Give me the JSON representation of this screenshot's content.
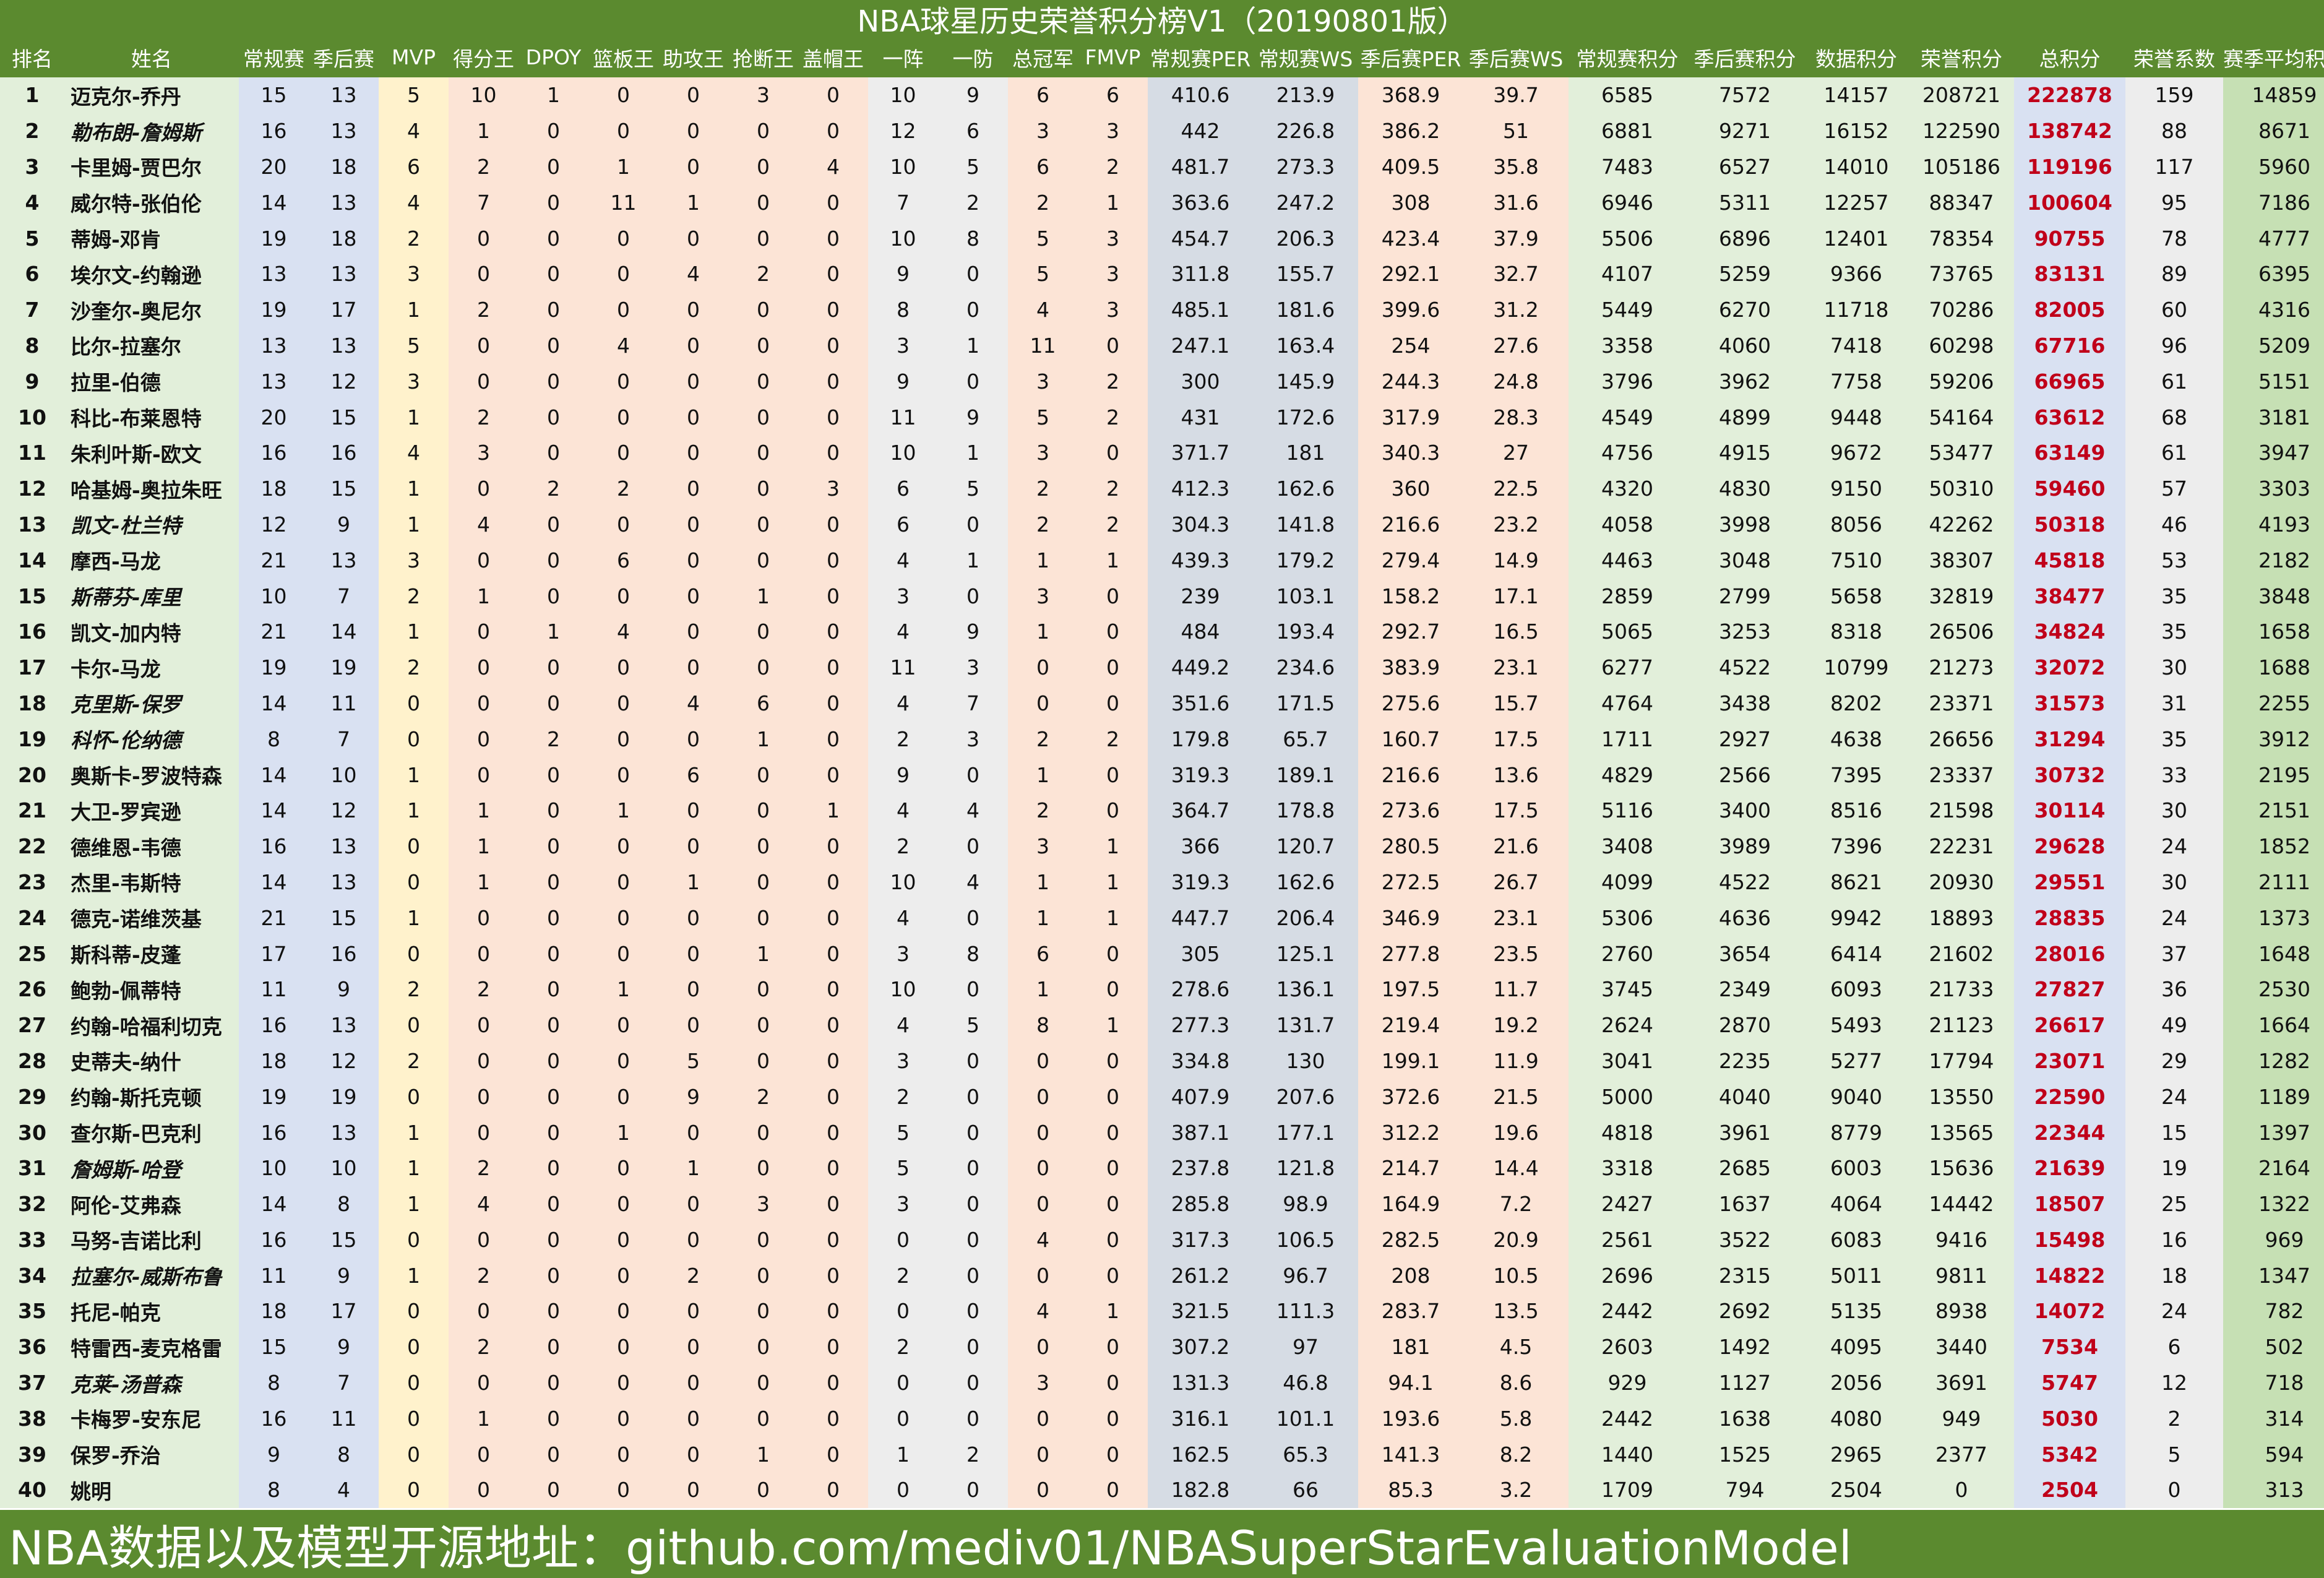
{
  "title": "NBA球星历史荣誉积分榜V1（20190801版）",
  "footer": "NBA数据以及模型开源地址：github.com/mediv01/NBASuperStarEvaluationModel",
  "columns": [
    "排名",
    "姓名",
    "常规赛",
    "季后赛",
    "MVP",
    "得分王",
    "DPOY",
    "篮板王",
    "助攻王",
    "抢断王",
    "盖帽王",
    "一阵",
    "一防",
    "总冠军",
    "FMVP",
    "常规赛PER",
    "常规赛WS",
    "季后赛PER",
    "季后赛WS",
    "常规赛积分",
    "季后赛积分",
    "数据积分",
    "荣誉积分",
    "总积分",
    "荣誉系数",
    "赛季平均积分"
  ],
  "column_colors": [
    "#e2efda",
    "#e2efda",
    "#d9e1f2",
    "#d9e1f2",
    "#fff2cc",
    "#fce4d6",
    "#fce4d6",
    "#fce4d6",
    "#fce4d6",
    "#fce4d6",
    "#fce4d6",
    "#ededed",
    "#ededed",
    "#fce4d6",
    "#fce4d6",
    "#d6dce4",
    "#d6dce4",
    "#fce4d6",
    "#fce4d6",
    "#e2efda",
    "#e2efda",
    "#e2efda",
    "#e2efda",
    "#d9e1f2",
    "#ededed",
    "#c6e0b4"
  ],
  "rows": [
    [
      "1",
      "迈克尔-乔丹",
      "15",
      "13",
      "5",
      "10",
      "1",
      "0",
      "0",
      "3",
      "0",
      "10",
      "9",
      "6",
      "6",
      "410.6",
      "213.9",
      "368.9",
      "39.7",
      "6585",
      "7572",
      "14157",
      "208721",
      "222878",
      "159",
      "14859"
    ],
    [
      "2",
      "勒布朗-詹姆斯",
      "16",
      "13",
      "4",
      "1",
      "0",
      "0",
      "0",
      "0",
      "0",
      "12",
      "6",
      "3",
      "3",
      "442",
      "226.8",
      "386.2",
      "51",
      "6881",
      "9271",
      "16152",
      "122590",
      "138742",
      "88",
      "8671"
    ],
    [
      "3",
      "卡里姆-贾巴尔",
      "20",
      "18",
      "6",
      "2",
      "0",
      "1",
      "0",
      "0",
      "4",
      "10",
      "5",
      "6",
      "2",
      "481.7",
      "273.3",
      "409.5",
      "35.8",
      "7483",
      "6527",
      "14010",
      "105186",
      "119196",
      "117",
      "5960"
    ],
    [
      "4",
      "威尔特-张伯伦",
      "14",
      "13",
      "4",
      "7",
      "0",
      "11",
      "1",
      "0",
      "0",
      "7",
      "2",
      "2",
      "1",
      "363.6",
      "247.2",
      "308",
      "31.6",
      "6946",
      "5311",
      "12257",
      "88347",
      "100604",
      "95",
      "7186"
    ],
    [
      "5",
      "蒂姆-邓肯",
      "19",
      "18",
      "2",
      "0",
      "0",
      "0",
      "0",
      "0",
      "0",
      "10",
      "8",
      "5",
      "3",
      "454.7",
      "206.3",
      "423.4",
      "37.9",
      "5506",
      "6896",
      "12401",
      "78354",
      "90755",
      "78",
      "4777"
    ],
    [
      "6",
      "埃尔文-约翰逊",
      "13",
      "13",
      "3",
      "0",
      "0",
      "0",
      "4",
      "2",
      "0",
      "9",
      "0",
      "5",
      "3",
      "311.8",
      "155.7",
      "292.1",
      "32.7",
      "4107",
      "5259",
      "9366",
      "73765",
      "83131",
      "89",
      "6395"
    ],
    [
      "7",
      "沙奎尔-奥尼尔",
      "19",
      "17",
      "1",
      "2",
      "0",
      "0",
      "0",
      "0",
      "0",
      "8",
      "0",
      "4",
      "3",
      "485.1",
      "181.6",
      "399.6",
      "31.2",
      "5449",
      "6270",
      "11718",
      "70286",
      "82005",
      "60",
      "4316"
    ],
    [
      "8",
      "比尔-拉塞尔",
      "13",
      "13",
      "5",
      "0",
      "0",
      "4",
      "0",
      "0",
      "0",
      "3",
      "1",
      "11",
      "0",
      "247.1",
      "163.4",
      "254",
      "27.6",
      "3358",
      "4060",
      "7418",
      "60298",
      "67716",
      "96",
      "5209"
    ],
    [
      "9",
      "拉里-伯德",
      "13",
      "12",
      "3",
      "0",
      "0",
      "0",
      "0",
      "0",
      "0",
      "9",
      "0",
      "3",
      "2",
      "300",
      "145.9",
      "244.3",
      "24.8",
      "3796",
      "3962",
      "7758",
      "59206",
      "66965",
      "61",
      "5151"
    ],
    [
      "10",
      "科比-布莱恩特",
      "20",
      "15",
      "1",
      "2",
      "0",
      "0",
      "0",
      "0",
      "0",
      "11",
      "9",
      "5",
      "2",
      "431",
      "172.6",
      "317.9",
      "28.3",
      "4549",
      "4899",
      "9448",
      "54164",
      "63612",
      "68",
      "3181"
    ],
    [
      "11",
      "朱利叶斯-欧文",
      "16",
      "16",
      "4",
      "3",
      "0",
      "0",
      "0",
      "0",
      "0",
      "10",
      "1",
      "3",
      "0",
      "371.7",
      "181",
      "340.3",
      "27",
      "4756",
      "4915",
      "9672",
      "53477",
      "63149",
      "61",
      "3947"
    ],
    [
      "12",
      "哈基姆-奥拉朱旺",
      "18",
      "15",
      "1",
      "0",
      "2",
      "2",
      "0",
      "0",
      "3",
      "6",
      "5",
      "2",
      "2",
      "412.3",
      "162.6",
      "360",
      "22.5",
      "4320",
      "4830",
      "9150",
      "50310",
      "59460",
      "57",
      "3303"
    ],
    [
      "13",
      "凯文-杜兰特",
      "12",
      "9",
      "1",
      "4",
      "0",
      "0",
      "0",
      "0",
      "0",
      "6",
      "0",
      "2",
      "2",
      "304.3",
      "141.8",
      "216.6",
      "23.2",
      "4058",
      "3998",
      "8056",
      "42262",
      "50318",
      "46",
      "4193"
    ],
    [
      "14",
      "摩西-马龙",
      "21",
      "13",
      "3",
      "0",
      "0",
      "6",
      "0",
      "0",
      "0",
      "4",
      "1",
      "1",
      "1",
      "439.3",
      "179.2",
      "279.4",
      "14.9",
      "4463",
      "3048",
      "7510",
      "38307",
      "45818",
      "53",
      "2182"
    ],
    [
      "15",
      "斯蒂芬-库里",
      "10",
      "7",
      "2",
      "1",
      "0",
      "0",
      "0",
      "1",
      "0",
      "3",
      "0",
      "3",
      "0",
      "239",
      "103.1",
      "158.2",
      "17.1",
      "2859",
      "2799",
      "5658",
      "32819",
      "38477",
      "35",
      "3848"
    ],
    [
      "16",
      "凯文-加内特",
      "21",
      "14",
      "1",
      "0",
      "1",
      "4",
      "0",
      "0",
      "0",
      "4",
      "9",
      "1",
      "0",
      "484",
      "193.4",
      "292.7",
      "16.5",
      "5065",
      "3253",
      "8318",
      "26506",
      "34824",
      "35",
      "1658"
    ],
    [
      "17",
      "卡尔-马龙",
      "19",
      "19",
      "2",
      "0",
      "0",
      "0",
      "0",
      "0",
      "0",
      "11",
      "3",
      "0",
      "0",
      "449.2",
      "234.6",
      "383.9",
      "23.1",
      "6277",
      "4522",
      "10799",
      "21273",
      "32072",
      "30",
      "1688"
    ],
    [
      "18",
      "克里斯-保罗",
      "14",
      "11",
      "0",
      "0",
      "0",
      "0",
      "4",
      "6",
      "0",
      "4",
      "7",
      "0",
      "0",
      "351.6",
      "171.5",
      "275.6",
      "15.7",
      "4764",
      "3438",
      "8202",
      "23371",
      "31573",
      "31",
      "2255"
    ],
    [
      "19",
      "科怀-伦纳德",
      "8",
      "7",
      "0",
      "0",
      "2",
      "0",
      "0",
      "1",
      "0",
      "2",
      "3",
      "2",
      "2",
      "179.8",
      "65.7",
      "160.7",
      "17.5",
      "1711",
      "2927",
      "4638",
      "26656",
      "31294",
      "35",
      "3912"
    ],
    [
      "20",
      "奥斯卡-罗波特森",
      "14",
      "10",
      "1",
      "0",
      "0",
      "0",
      "6",
      "0",
      "0",
      "9",
      "0",
      "1",
      "0",
      "319.3",
      "189.1",
      "216.6",
      "13.6",
      "4829",
      "2566",
      "7395",
      "23337",
      "30732",
      "33",
      "2195"
    ],
    [
      "21",
      "大卫-罗宾逊",
      "14",
      "12",
      "1",
      "1",
      "0",
      "1",
      "0",
      "0",
      "1",
      "4",
      "4",
      "2",
      "0",
      "364.7",
      "178.8",
      "273.6",
      "17.5",
      "5116",
      "3400",
      "8516",
      "21598",
      "30114",
      "30",
      "2151"
    ],
    [
      "22",
      "德维恩-韦德",
      "16",
      "13",
      "0",
      "1",
      "0",
      "0",
      "0",
      "0",
      "0",
      "2",
      "0",
      "3",
      "1",
      "366",
      "120.7",
      "280.5",
      "21.6",
      "3408",
      "3989",
      "7396",
      "22231",
      "29628",
      "24",
      "1852"
    ],
    [
      "23",
      "杰里-韦斯特",
      "14",
      "13",
      "0",
      "1",
      "0",
      "0",
      "1",
      "0",
      "0",
      "10",
      "4",
      "1",
      "1",
      "319.3",
      "162.6",
      "272.5",
      "26.7",
      "4099",
      "4522",
      "8621",
      "20930",
      "29551",
      "30",
      "2111"
    ],
    [
      "24",
      "德克-诺维茨基",
      "21",
      "15",
      "1",
      "0",
      "0",
      "0",
      "0",
      "0",
      "0",
      "4",
      "0",
      "1",
      "1",
      "447.7",
      "206.4",
      "346.9",
      "23.1",
      "5306",
      "4636",
      "9942",
      "18893",
      "28835",
      "24",
      "1373"
    ],
    [
      "25",
      "斯科蒂-皮蓬",
      "17",
      "16",
      "0",
      "0",
      "0",
      "0",
      "0",
      "1",
      "0",
      "3",
      "8",
      "6",
      "0",
      "305",
      "125.1",
      "277.8",
      "23.5",
      "2760",
      "3654",
      "6414",
      "21602",
      "28016",
      "37",
      "1648"
    ],
    [
      "26",
      "鲍勃-佩蒂特",
      "11",
      "9",
      "2",
      "2",
      "0",
      "1",
      "0",
      "0",
      "0",
      "10",
      "0",
      "1",
      "0",
      "278.6",
      "136.1",
      "197.5",
      "11.7",
      "3745",
      "2349",
      "6093",
      "21733",
      "27827",
      "36",
      "2530"
    ],
    [
      "27",
      "约翰-哈福利切克",
      "16",
      "13",
      "0",
      "0",
      "0",
      "0",
      "0",
      "0",
      "0",
      "4",
      "5",
      "8",
      "1",
      "277.3",
      "131.7",
      "219.4",
      "19.2",
      "2624",
      "2870",
      "5493",
      "21123",
      "26617",
      "49",
      "1664"
    ],
    [
      "28",
      "史蒂夫-纳什",
      "18",
      "12",
      "2",
      "0",
      "0",
      "0",
      "5",
      "0",
      "0",
      "3",
      "0",
      "0",
      "0",
      "334.8",
      "130",
      "199.1",
      "11.9",
      "3041",
      "2235",
      "5277",
      "17794",
      "23071",
      "29",
      "1282"
    ],
    [
      "29",
      "约翰-斯托克顿",
      "19",
      "19",
      "0",
      "0",
      "0",
      "0",
      "9",
      "2",
      "0",
      "2",
      "0",
      "0",
      "0",
      "407.9",
      "207.6",
      "372.6",
      "21.5",
      "5000",
      "4040",
      "9040",
      "13550",
      "22590",
      "24",
      "1189"
    ],
    [
      "30",
      "查尔斯-巴克利",
      "16",
      "13",
      "1",
      "0",
      "0",
      "1",
      "0",
      "0",
      "0",
      "5",
      "0",
      "0",
      "0",
      "387.1",
      "177.1",
      "312.2",
      "19.6",
      "4818",
      "3961",
      "8779",
      "13565",
      "22344",
      "15",
      "1397"
    ],
    [
      "31",
      "詹姆斯-哈登",
      "10",
      "10",
      "1",
      "2",
      "0",
      "0",
      "1",
      "0",
      "0",
      "5",
      "0",
      "0",
      "0",
      "237.8",
      "121.8",
      "214.7",
      "14.4",
      "3318",
      "2685",
      "6003",
      "15636",
      "21639",
      "19",
      "2164"
    ],
    [
      "32",
      "阿伦-艾弗森",
      "14",
      "8",
      "1",
      "4",
      "0",
      "0",
      "0",
      "3",
      "0",
      "3",
      "0",
      "0",
      "0",
      "285.8",
      "98.9",
      "164.9",
      "7.2",
      "2427",
      "1637",
      "4064",
      "14442",
      "18507",
      "25",
      "1322"
    ],
    [
      "33",
      "马努-吉诺比利",
      "16",
      "15",
      "0",
      "0",
      "0",
      "0",
      "0",
      "0",
      "0",
      "0",
      "0",
      "4",
      "0",
      "317.3",
      "106.5",
      "282.5",
      "20.9",
      "2561",
      "3522",
      "6083",
      "9416",
      "15498",
      "16",
      "969"
    ],
    [
      "34",
      "拉塞尔-威斯布鲁",
      "11",
      "9",
      "1",
      "2",
      "0",
      "0",
      "2",
      "0",
      "0",
      "2",
      "0",
      "0",
      "0",
      "261.2",
      "96.7",
      "208",
      "10.5",
      "2696",
      "2315",
      "5011",
      "9811",
      "14822",
      "18",
      "1347"
    ],
    [
      "35",
      "托尼-帕克",
      "18",
      "17",
      "0",
      "0",
      "0",
      "0",
      "0",
      "0",
      "0",
      "0",
      "0",
      "4",
      "1",
      "321.5",
      "111.3",
      "283.7",
      "13.5",
      "2442",
      "2692",
      "5135",
      "8938",
      "14072",
      "24",
      "782"
    ],
    [
      "36",
      "特雷西-麦克格雷",
      "15",
      "9",
      "0",
      "2",
      "0",
      "0",
      "0",
      "0",
      "0",
      "2",
      "0",
      "0",
      "0",
      "307.2",
      "97",
      "181",
      "4.5",
      "2603",
      "1492",
      "4095",
      "3440",
      "7534",
      "6",
      "502"
    ],
    [
      "37",
      "克莱-汤普森",
      "8",
      "7",
      "0",
      "0",
      "0",
      "0",
      "0",
      "0",
      "0",
      "0",
      "0",
      "3",
      "0",
      "131.3",
      "46.8",
      "94.1",
      "8.6",
      "929",
      "1127",
      "2056",
      "3691",
      "5747",
      "12",
      "718"
    ],
    [
      "38",
      "卡梅罗-安东尼",
      "16",
      "11",
      "0",
      "1",
      "0",
      "0",
      "0",
      "0",
      "0",
      "0",
      "0",
      "0",
      "0",
      "316.1",
      "101.1",
      "193.6",
      "5.8",
      "2442",
      "1638",
      "4080",
      "949",
      "5030",
      "2",
      "314"
    ],
    [
      "39",
      "保罗-乔治",
      "9",
      "8",
      "0",
      "0",
      "0",
      "0",
      "0",
      "1",
      "0",
      "1",
      "2",
      "0",
      "0",
      "162.5",
      "65.3",
      "141.3",
      "8.2",
      "1440",
      "1525",
      "2965",
      "2377",
      "5342",
      "5",
      "594"
    ],
    [
      "40",
      "姚明",
      "8",
      "4",
      "0",
      "0",
      "0",
      "0",
      "0",
      "0",
      "0",
      "0",
      "0",
      "0",
      "0",
      "182.8",
      "66",
      "85.3",
      "3.2",
      "1709",
      "794",
      "2504",
      "0",
      "2504",
      "0",
      "313"
    ]
  ],
  "italic_rows": [
    2,
    13,
    15,
    18,
    19,
    31,
    34,
    37
  ]
}
